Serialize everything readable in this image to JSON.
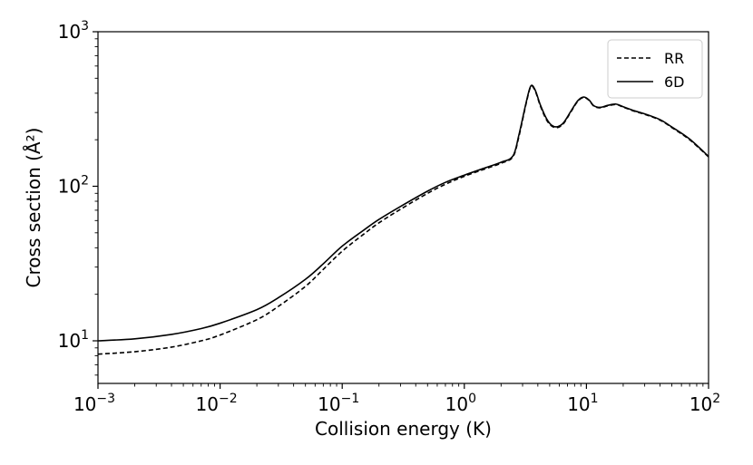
{
  "chart_data": {
    "type": "line",
    "xscale": "log",
    "yscale": "log",
    "xlim": [
      0.001,
      100
    ],
    "ylim": [
      5.3,
      1000
    ],
    "xlabel": "Collision energy (K)",
    "ylabel": "Cross section (Å²)",
    "x_ticks": [
      {
        "value": 0.001,
        "base": "10",
        "exp": "−3"
      },
      {
        "value": 0.01,
        "base": "10",
        "exp": "−2"
      },
      {
        "value": 0.1,
        "base": "10",
        "exp": "−1"
      },
      {
        "value": 1,
        "base": "10",
        "exp": "0"
      },
      {
        "value": 10,
        "base": "10",
        "exp": "1"
      },
      {
        "value": 100,
        "base": "10",
        "exp": "2"
      }
    ],
    "y_ticks": [
      {
        "value": 10,
        "base": "10",
        "exp": "1"
      },
      {
        "value": 100,
        "base": "10",
        "exp": "2"
      },
      {
        "value": 1000,
        "base": "10",
        "exp": "3"
      }
    ],
    "legend_position": "top-right",
    "grid": false,
    "series": [
      {
        "name": "RR",
        "style": "dashed",
        "color": "#000000",
        "x": [
          0.001,
          0.002,
          0.004,
          0.007,
          0.01,
          0.02,
          0.03,
          0.05,
          0.07,
          0.1,
          0.15,
          0.2,
          0.3,
          0.5,
          0.7,
          1.0,
          1.5,
          2.0,
          2.5,
          2.8,
          3.2,
          3.5,
          3.8,
          4.2,
          4.7,
          5.2,
          5.8,
          6.5,
          7.5,
          8.5,
          9.5,
          10.5,
          11.5,
          13.0,
          15.0,
          17.5,
          20.0,
          25.0,
          30.0,
          40.0,
          50.0,
          70.0,
          100.0
        ],
        "y": [
          8.2,
          8.5,
          9.1,
          10.0,
          10.9,
          13.7,
          16.7,
          22.5,
          29.0,
          38.0,
          49.0,
          58.0,
          71.0,
          90.0,
          103.0,
          116.0,
          130.0,
          141.0,
          155.0,
          210.0,
          340.0,
          440.0,
          415.0,
          330.0,
          270.0,
          245.0,
          240.0,
          255.0,
          305.0,
          355.0,
          375.0,
          360.0,
          330.0,
          322.0,
          332.0,
          338.0,
          325.0,
          305.0,
          292.0,
          268.0,
          240.0,
          200.0,
          155.0
        ]
      },
      {
        "name": "6D",
        "style": "solid",
        "color": "#000000",
        "x": [
          0.001,
          0.002,
          0.004,
          0.007,
          0.01,
          0.02,
          0.03,
          0.05,
          0.07,
          0.1,
          0.15,
          0.2,
          0.3,
          0.5,
          0.7,
          1.0,
          1.5,
          2.0,
          2.5,
          2.8,
          3.2,
          3.5,
          3.8,
          4.2,
          4.7,
          5.2,
          5.8,
          6.5,
          7.5,
          8.5,
          9.5,
          10.5,
          11.5,
          13.0,
          15.0,
          17.5,
          20.0,
          25.0,
          30.0,
          40.0,
          50.0,
          70.0,
          100.0
        ],
        "y": [
          10.0,
          10.3,
          11.0,
          12.0,
          13.0,
          15.9,
          19.0,
          25.0,
          31.5,
          41.0,
          52.0,
          61.0,
          74.0,
          93.0,
          106.0,
          118.0,
          132.0,
          143.0,
          157.0,
          215.0,
          345.0,
          445.0,
          420.0,
          335.0,
          275.0,
          248.0,
          243.0,
          258.0,
          308.0,
          358.0,
          378.0,
          362.0,
          332.0,
          324.0,
          334.0,
          340.0,
          327.0,
          307.0,
          294.0,
          270.0,
          242.0,
          202.0,
          156.0
        ]
      }
    ]
  }
}
